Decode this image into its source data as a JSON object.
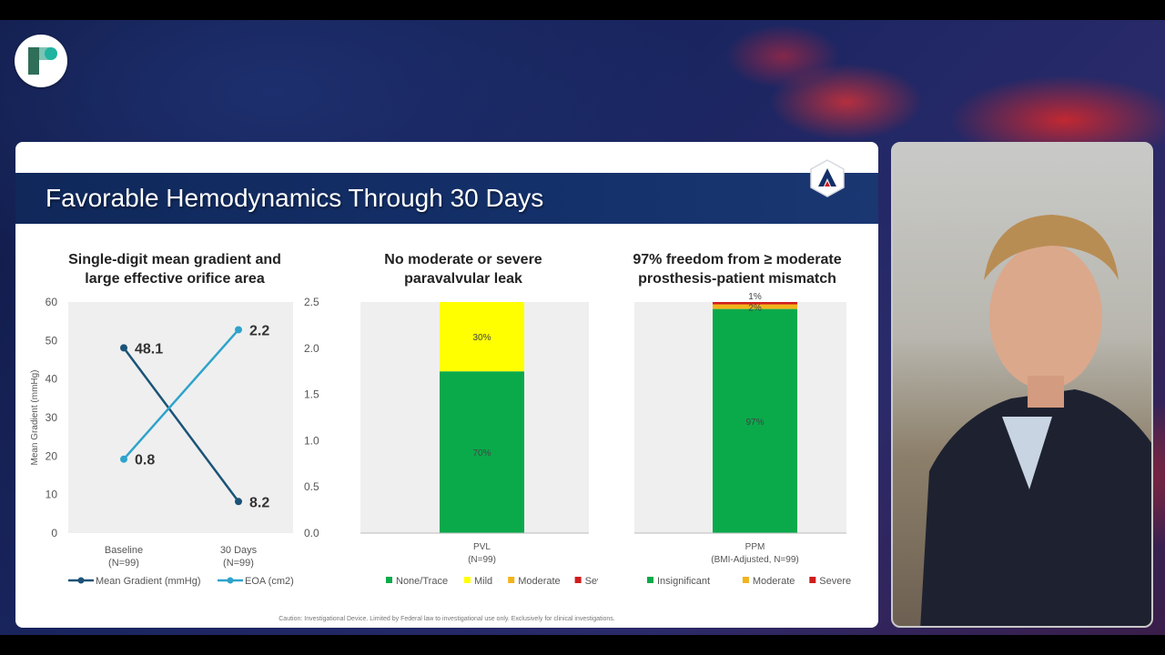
{
  "slide": {
    "title": "Favorable Hemodynamics Through 30 Days",
    "caption": "Caution: Investigational Device. Limited by Federal law to investigational use only.  Exclusively for clinical investigations."
  },
  "colors": {
    "mean_gradient": "#1b5377",
    "eoa": "#2ea3cc",
    "green": "#0aaa4b",
    "yellow": "#ffff00",
    "orange": "#f2b31c",
    "red": "#d01c1c",
    "plot_bg": "#efefef",
    "header": "#132a5e"
  },
  "chart_data": [
    {
      "type": "line",
      "title_line1": "Single-digit mean gradient and",
      "title_line2": "large effective orifice area",
      "categories": [
        "Baseline",
        "30 Days"
      ],
      "category_subs": [
        "(N=99)",
        "(N=99)"
      ],
      "ylabel": "Mean Gradient (mmHg)",
      "ylim": [
        0,
        60
      ],
      "yticks": [
        "0",
        "10",
        "20",
        "30",
        "40",
        "50",
        "60"
      ],
      "y2label": "EOA (cm²)",
      "y2lim": [
        0,
        2.5
      ],
      "y2ticks": [
        "0.0",
        "0.5",
        "1.0",
        "1.5",
        "2.0",
        "2.5"
      ],
      "series": [
        {
          "name": "Mean Gradient (mmHg)",
          "axis": "left",
          "values": [
            48.1,
            8.2
          ],
          "labels": [
            "48.1",
            "8.2"
          ]
        },
        {
          "name": "EOA (cm2)",
          "axis": "right",
          "values": [
            0.8,
            2.2
          ],
          "labels": [
            "0.8",
            "2.2"
          ]
        }
      ],
      "legend_position": "bottom"
    },
    {
      "type": "bar",
      "stacked": true,
      "title_line1": "No moderate or severe",
      "title_line2": "paravalvular leak",
      "category": "PVL",
      "category_sub": "(N=99)",
      "segments": [
        {
          "name": "None/Trace",
          "value": 70,
          "label": "70%"
        },
        {
          "name": "Mild",
          "value": 30,
          "label": "30%"
        },
        {
          "name": "Moderate",
          "value": 0,
          "label": ""
        },
        {
          "name": "Severe",
          "value": 0,
          "label": ""
        }
      ],
      "legend_position": "bottom"
    },
    {
      "type": "bar",
      "stacked": true,
      "title_line1": "97% freedom from ≥ moderate",
      "title_line2": "prosthesis-patient mismatch",
      "category": "PPM",
      "category_sub": "(BMI-Adjusted, N=99)",
      "segments": [
        {
          "name": "Insignificant",
          "value": 97,
          "label": "97%"
        },
        {
          "name": "Moderate",
          "value": 2,
          "label": "2%"
        },
        {
          "name": "Severe",
          "value": 1,
          "label": "1%"
        }
      ],
      "legend_position": "bottom"
    }
  ]
}
